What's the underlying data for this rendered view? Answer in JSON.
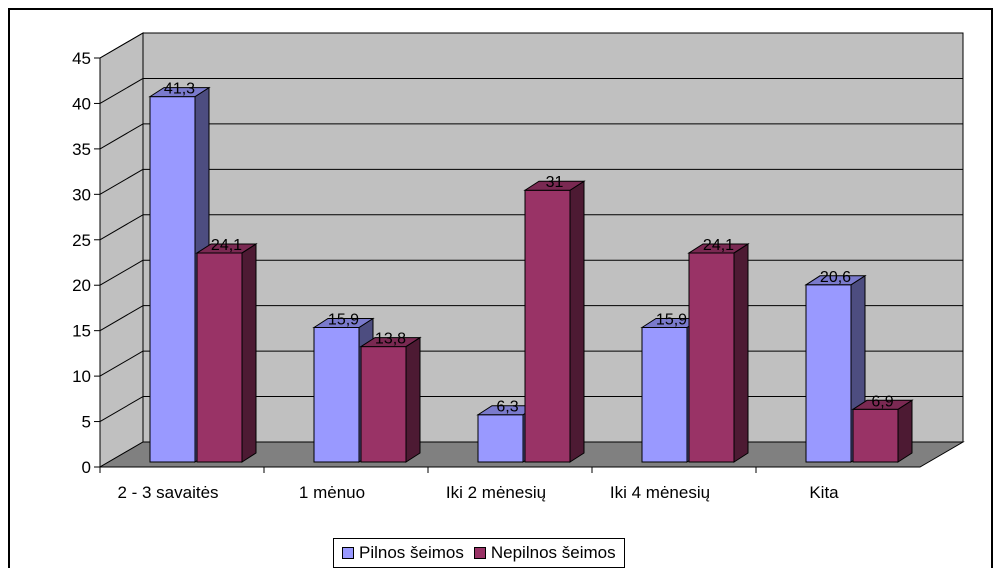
{
  "chart_data": {
    "type": "bar",
    "title": "",
    "xlabel": "",
    "ylabel": "",
    "categories": [
      "2 - 3 savaitės",
      "1 mėnuo",
      "Iki 2 mėnesių",
      "Iki 4 mėnesių",
      "Kita"
    ],
    "series": [
      {
        "name": "Pilnos šeimos",
        "values": [
          41.3,
          15.9,
          6.3,
          15.9,
          20.6
        ],
        "value_labels": [
          "41,3",
          "15,9",
          "6,3",
          "15,9",
          "20,6"
        ],
        "color": "#9999FF"
      },
      {
        "name": "Nepilnos šeimos",
        "values": [
          24.1,
          13.8,
          31,
          24.1,
          6.9
        ],
        "value_labels": [
          "24,1",
          "13,8",
          "31",
          "24,1",
          "6,9"
        ],
        "color": "#993366"
      }
    ],
    "ylim": [
      0,
      45
    ],
    "yticks": [
      0,
      5,
      10,
      15,
      20,
      25,
      30,
      35,
      40,
      45
    ],
    "grid": true,
    "legend": "bottom",
    "style": "3d"
  },
  "colors": {
    "wall": "#C0C0C0",
    "floor": "#808080",
    "grid": "#000000"
  }
}
